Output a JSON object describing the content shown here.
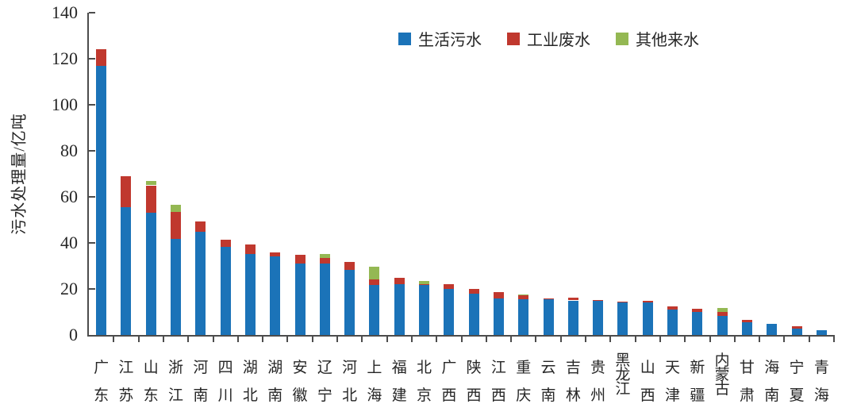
{
  "colors": {
    "domestic_blue": "#1b73b8",
    "industrial_red": "#c0382e",
    "other_green": "#94b853",
    "axis": "#4c4c4c",
    "text": "#262626",
    "background": "#ffffff"
  },
  "chart_data": {
    "type": "bar",
    "stacked": true,
    "title": "",
    "xlabel": "",
    "ylabel": "污水处理量/亿吨",
    "ylim": [
      0,
      140
    ],
    "yticks": [
      0,
      20,
      40,
      60,
      80,
      100,
      120,
      140
    ],
    "grid": false,
    "legend_position": "top-center",
    "unit": "亿吨",
    "categories": [
      "广东",
      "江苏",
      "山东",
      "浙江",
      "河南",
      "四川",
      "湖北",
      "湖南",
      "安徽",
      "辽宁",
      "河北",
      "上海",
      "福建",
      "北京",
      "广西",
      "陕西",
      "江西",
      "重庆",
      "云南",
      "吉林",
      "贵州",
      "黑龙江",
      "山西",
      "天津",
      "新疆",
      "内蒙古",
      "甘肃",
      "海南",
      "宁夏",
      "青海"
    ],
    "series": [
      {
        "name": "生活污水",
        "color": "#1b73b8",
        "values": [
          117,
          55.5,
          53,
          41.7,
          44.7,
          38.3,
          35.2,
          34,
          31,
          31,
          28.2,
          21.6,
          22,
          21.9,
          20,
          18,
          16,
          15.5,
          15.5,
          15,
          15,
          14,
          14,
          11,
          10.1,
          8.3,
          5.4,
          4.8,
          2.6,
          2
        ]
      },
      {
        "name": "工业废水",
        "color": "#c0382e",
        "values": [
          7,
          13.5,
          12,
          11.6,
          4.5,
          3.2,
          4,
          2,
          3.8,
          2.3,
          3.5,
          2.6,
          2.8,
          0.3,
          2,
          2,
          2.5,
          1.8,
          0.3,
          1.2,
          0.3,
          0.6,
          0.8,
          1.3,
          1.4,
          1.7,
          1.1,
          0,
          1.2,
          0
        ]
      },
      {
        "name": "其他来水",
        "color": "#94b853",
        "values": [
          0,
          0,
          2,
          3.4,
          0,
          0,
          0,
          0,
          0,
          1.8,
          0,
          5.4,
          0,
          1.4,
          0,
          0,
          0,
          0.4,
          0,
          0,
          0,
          0,
          0,
          0,
          0,
          1.7,
          0,
          0,
          0,
          0
        ]
      }
    ]
  }
}
